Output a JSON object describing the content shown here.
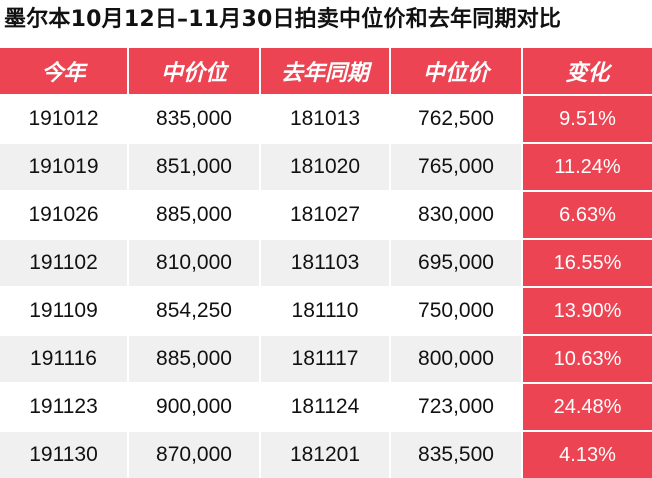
{
  "title": "墨尔本10月12日–11月30日拍卖中位价和去年同期对比",
  "table": {
    "headers": [
      "今年",
      "中价位",
      "去年同期",
      "中位价",
      "变化"
    ],
    "rows": [
      [
        "191012",
        "835,000",
        "181013",
        "762,500",
        "9.51%"
      ],
      [
        "191019",
        "851,000",
        "181020",
        "765,000",
        "11.24%"
      ],
      [
        "191026",
        "885,000",
        "181027",
        "830,000",
        "6.63%"
      ],
      [
        "191102",
        "810,000",
        "181103",
        "695,000",
        "16.55%"
      ],
      [
        "191109",
        "854,250",
        "181110",
        "750,000",
        "13.90%"
      ],
      [
        "191116",
        "885,000",
        "181117",
        "800,000",
        "10.63%"
      ],
      [
        "191123",
        "900,000",
        "181124",
        "723,000",
        "24.48%"
      ],
      [
        "191130",
        "870,000",
        "181201",
        "835,500",
        "4.13%"
      ]
    ]
  },
  "colors": {
    "header_bg": "#ec4452",
    "change_bg": "#ec4452",
    "alt_row_bg": "#f0f0f0"
  }
}
